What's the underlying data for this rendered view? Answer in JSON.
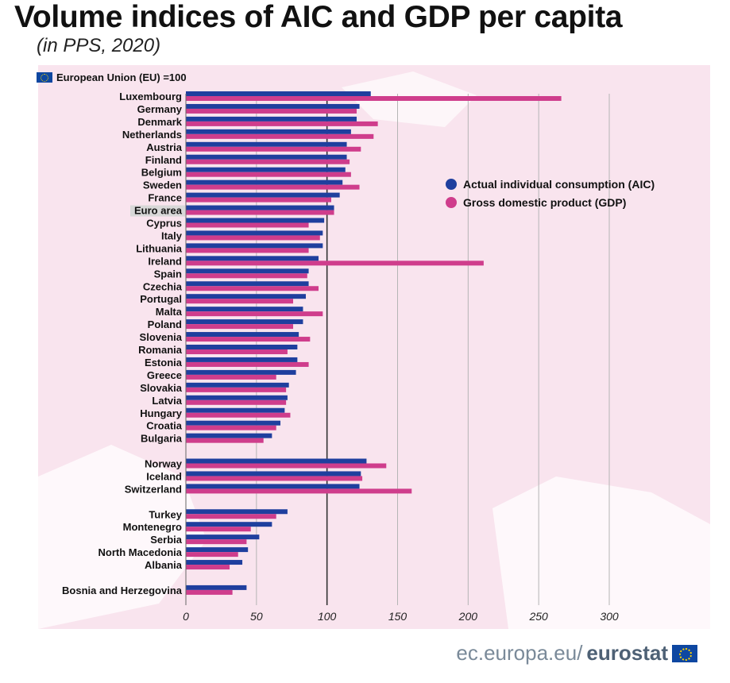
{
  "title": "Volume indices of AIC and GDP per capita",
  "subtitle": "(in PPS, 2020)",
  "eu_note": "European Union (EU) =100",
  "footer": {
    "prefix": "ec.europa.eu/",
    "brand": "eurostat"
  },
  "colors": {
    "aic": "#1f3f9e",
    "gdp": "#cf3d8c",
    "background_map": "#f9e4ee",
    "highlight": "#d8d8d8"
  },
  "icons": [
    "eu-flag-icon"
  ],
  "chart_data": {
    "type": "bar",
    "orientation": "horizontal",
    "categories": [
      "Luxembourg",
      "Germany",
      "Denmark",
      "Netherlands",
      "Austria",
      "Finland",
      "Belgium",
      "Sweden",
      "France",
      "Euro area",
      "Cyprus",
      "Italy",
      "Lithuania",
      "Ireland",
      "Spain",
      "Czechia",
      "Portugal",
      "Malta",
      "Poland",
      "Slovenia",
      "Romania",
      "Estonia",
      "Greece",
      "Slovakia",
      "Latvia",
      "Hungary",
      "Croatia",
      "Bulgaria",
      "Norway",
      "Iceland",
      "Switzerland",
      "Turkey",
      "Montenegro",
      "Serbia",
      "North Macedonia",
      "Albania",
      "Bosnia and Herzegovina"
    ],
    "groups": [
      28,
      3,
      5,
      1
    ],
    "highlight_category": "Euro area",
    "series": [
      {
        "name": "Actual individual consumption (AIC)",
        "values": [
          131,
          123,
          121,
          117,
          114,
          114,
          113,
          111,
          109,
          105,
          98,
          97,
          97,
          94,
          87,
          87,
          85,
          83,
          83,
          80,
          79,
          79,
          78,
          73,
          72,
          70,
          67,
          61,
          128,
          124,
          123,
          72,
          61,
          52,
          44,
          40,
          43
        ]
      },
      {
        "name": "Gross domestic product (GDP)",
        "values": [
          266,
          121,
          136,
          133,
          124,
          116,
          117,
          123,
          103,
          105,
          87,
          95,
          87,
          211,
          86,
          94,
          76,
          97,
          76,
          88,
          72,
          87,
          64,
          71,
          71,
          74,
          64,
          55,
          142,
          125,
          160,
          64,
          46,
          43,
          37,
          31,
          33
        ]
      }
    ],
    "xlim": [
      0,
      300
    ],
    "xticks": [
      0,
      50,
      100,
      150,
      200,
      250,
      300
    ],
    "reference_line": 100,
    "grid": true,
    "legend_position": "right-middle"
  }
}
